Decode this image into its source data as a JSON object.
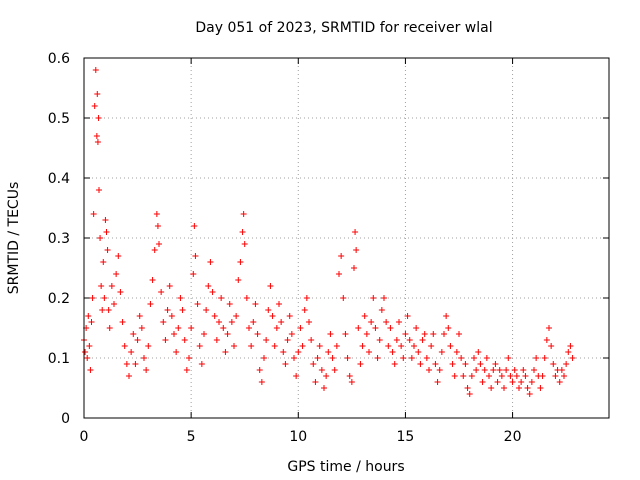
{
  "chart_data": {
    "type": "scatter",
    "title": "Day 051 of 2023, SRMTID for receiver wlal",
    "xlabel": "GPS time / hours",
    "ylabel": "SRMTID / TECUs",
    "xlim": [
      0,
      24.5
    ],
    "ylim": [
      0,
      0.6
    ],
    "xticks": [
      0,
      5,
      10,
      15,
      20
    ],
    "yticks": [
      0,
      0.1,
      0.2,
      0.3,
      0.4,
      0.5,
      0.6
    ],
    "xtick_labels": [
      "0",
      "5",
      "10",
      "15",
      "20"
    ],
    "ytick_labels": [
      "0",
      "0.1",
      "0.2",
      "0.3",
      "0.4",
      "0.5",
      "0.6"
    ],
    "grid": true,
    "marker": "+",
    "color": "#ff0000",
    "series": [
      {
        "name": "SRMTID",
        "points": [
          [
            0.0,
            0.13
          ],
          [
            0.05,
            0.11
          ],
          [
            0.1,
            0.15
          ],
          [
            0.15,
            0.1
          ],
          [
            0.2,
            0.17
          ],
          [
            0.25,
            0.12
          ],
          [
            0.3,
            0.08
          ],
          [
            0.35,
            0.16
          ],
          [
            0.4,
            0.2
          ],
          [
            0.45,
            0.34
          ],
          [
            0.5,
            0.52
          ],
          [
            0.55,
            0.58
          ],
          [
            0.6,
            0.47
          ],
          [
            0.62,
            0.54
          ],
          [
            0.65,
            0.46
          ],
          [
            0.68,
            0.5
          ],
          [
            0.7,
            0.38
          ],
          [
            0.75,
            0.3
          ],
          [
            0.8,
            0.22
          ],
          [
            0.85,
            0.18
          ],
          [
            0.9,
            0.26
          ],
          [
            0.95,
            0.2
          ],
          [
            1.0,
            0.33
          ],
          [
            1.05,
            0.31
          ],
          [
            1.1,
            0.28
          ],
          [
            1.15,
            0.18
          ],
          [
            1.2,
            0.15
          ],
          [
            1.3,
            0.22
          ],
          [
            1.4,
            0.19
          ],
          [
            1.5,
            0.24
          ],
          [
            1.6,
            0.27
          ],
          [
            1.7,
            0.21
          ],
          [
            1.8,
            0.16
          ],
          [
            1.9,
            0.12
          ],
          [
            2.0,
            0.09
          ],
          [
            2.1,
            0.07
          ],
          [
            2.2,
            0.11
          ],
          [
            2.3,
            0.14
          ],
          [
            2.4,
            0.09
          ],
          [
            2.5,
            0.13
          ],
          [
            2.6,
            0.17
          ],
          [
            2.7,
            0.15
          ],
          [
            2.8,
            0.1
          ],
          [
            2.9,
            0.08
          ],
          [
            3.0,
            0.12
          ],
          [
            3.1,
            0.19
          ],
          [
            3.2,
            0.23
          ],
          [
            3.3,
            0.28
          ],
          [
            3.4,
            0.34
          ],
          [
            3.45,
            0.32
          ],
          [
            3.5,
            0.29
          ],
          [
            3.6,
            0.21
          ],
          [
            3.7,
            0.16
          ],
          [
            3.8,
            0.13
          ],
          [
            3.9,
            0.18
          ],
          [
            4.0,
            0.22
          ],
          [
            4.1,
            0.17
          ],
          [
            4.2,
            0.14
          ],
          [
            4.3,
            0.11
          ],
          [
            4.4,
            0.15
          ],
          [
            4.5,
            0.2
          ],
          [
            4.6,
            0.18
          ],
          [
            4.7,
            0.13
          ],
          [
            4.8,
            0.08
          ],
          [
            4.9,
            0.1
          ],
          [
            5.0,
            0.15
          ],
          [
            5.1,
            0.24
          ],
          [
            5.15,
            0.32
          ],
          [
            5.2,
            0.27
          ],
          [
            5.3,
            0.19
          ],
          [
            5.4,
            0.12
          ],
          [
            5.5,
            0.09
          ],
          [
            5.6,
            0.14
          ],
          [
            5.7,
            0.18
          ],
          [
            5.8,
            0.22
          ],
          [
            5.9,
            0.26
          ],
          [
            6.0,
            0.21
          ],
          [
            6.1,
            0.17
          ],
          [
            6.2,
            0.13
          ],
          [
            6.3,
            0.16
          ],
          [
            6.4,
            0.2
          ],
          [
            6.5,
            0.15
          ],
          [
            6.6,
            0.11
          ],
          [
            6.7,
            0.14
          ],
          [
            6.8,
            0.19
          ],
          [
            6.9,
            0.16
          ],
          [
            7.0,
            0.12
          ],
          [
            7.1,
            0.17
          ],
          [
            7.2,
            0.23
          ],
          [
            7.3,
            0.26
          ],
          [
            7.4,
            0.31
          ],
          [
            7.45,
            0.34
          ],
          [
            7.5,
            0.29
          ],
          [
            7.6,
            0.2
          ],
          [
            7.7,
            0.15
          ],
          [
            7.8,
            0.12
          ],
          [
            7.9,
            0.16
          ],
          [
            8.0,
            0.19
          ],
          [
            8.1,
            0.14
          ],
          [
            8.2,
            0.08
          ],
          [
            8.3,
            0.06
          ],
          [
            8.4,
            0.1
          ],
          [
            8.5,
            0.13
          ],
          [
            8.6,
            0.18
          ],
          [
            8.7,
            0.22
          ],
          [
            8.8,
            0.17
          ],
          [
            8.9,
            0.12
          ],
          [
            9.0,
            0.15
          ],
          [
            9.1,
            0.19
          ],
          [
            9.2,
            0.16
          ],
          [
            9.3,
            0.11
          ],
          [
            9.4,
            0.09
          ],
          [
            9.5,
            0.13
          ],
          [
            9.6,
            0.17
          ],
          [
            9.7,
            0.14
          ],
          [
            9.8,
            0.1
          ],
          [
            9.9,
            0.07
          ],
          [
            10.0,
            0.11
          ],
          [
            10.1,
            0.15
          ],
          [
            10.2,
            0.12
          ],
          [
            10.3,
            0.18
          ],
          [
            10.4,
            0.2
          ],
          [
            10.5,
            0.16
          ],
          [
            10.6,
            0.13
          ],
          [
            10.7,
            0.09
          ],
          [
            10.8,
            0.06
          ],
          [
            10.9,
            0.1
          ],
          [
            11.0,
            0.12
          ],
          [
            11.1,
            0.08
          ],
          [
            11.2,
            0.05
          ],
          [
            11.3,
            0.07
          ],
          [
            11.4,
            0.11
          ],
          [
            11.5,
            0.14
          ],
          [
            11.6,
            0.1
          ],
          [
            11.7,
            0.08
          ],
          [
            11.8,
            0.12
          ],
          [
            11.9,
            0.24
          ],
          [
            12.0,
            0.27
          ],
          [
            12.1,
            0.2
          ],
          [
            12.2,
            0.14
          ],
          [
            12.3,
            0.1
          ],
          [
            12.4,
            0.07
          ],
          [
            12.5,
            0.06
          ],
          [
            12.6,
            0.25
          ],
          [
            12.65,
            0.31
          ],
          [
            12.7,
            0.28
          ],
          [
            12.8,
            0.15
          ],
          [
            12.9,
            0.09
          ],
          [
            13.0,
            0.12
          ],
          [
            13.1,
            0.17
          ],
          [
            13.2,
            0.14
          ],
          [
            13.3,
            0.11
          ],
          [
            13.4,
            0.16
          ],
          [
            13.5,
            0.2
          ],
          [
            13.6,
            0.15
          ],
          [
            13.7,
            0.1
          ],
          [
            13.8,
            0.13
          ],
          [
            13.9,
            0.18
          ],
          [
            14.0,
            0.2
          ],
          [
            14.1,
            0.16
          ],
          [
            14.2,
            0.12
          ],
          [
            14.3,
            0.15
          ],
          [
            14.4,
            0.11
          ],
          [
            14.5,
            0.09
          ],
          [
            14.6,
            0.13
          ],
          [
            14.7,
            0.16
          ],
          [
            14.8,
            0.12
          ],
          [
            14.9,
            0.1
          ],
          [
            15.0,
            0.14
          ],
          [
            15.1,
            0.17
          ],
          [
            15.2,
            0.13
          ],
          [
            15.3,
            0.1
          ],
          [
            15.4,
            0.12
          ],
          [
            15.5,
            0.15
          ],
          [
            15.6,
            0.11
          ],
          [
            15.7,
            0.09
          ],
          [
            15.8,
            0.13
          ],
          [
            15.9,
            0.14
          ],
          [
            16.0,
            0.1
          ],
          [
            16.1,
            0.08
          ],
          [
            16.2,
            0.12
          ],
          [
            16.3,
            0.14
          ],
          [
            16.4,
            0.09
          ],
          [
            16.5,
            0.06
          ],
          [
            16.6,
            0.08
          ],
          [
            16.7,
            0.11
          ],
          [
            16.8,
            0.14
          ],
          [
            16.9,
            0.17
          ],
          [
            17.0,
            0.15
          ],
          [
            17.1,
            0.12
          ],
          [
            17.2,
            0.09
          ],
          [
            17.3,
            0.07
          ],
          [
            17.4,
            0.11
          ],
          [
            17.5,
            0.14
          ],
          [
            17.6,
            0.1
          ],
          [
            17.7,
            0.07
          ],
          [
            17.8,
            0.09
          ],
          [
            17.9,
            0.05
          ],
          [
            18.0,
            0.04
          ],
          [
            18.1,
            0.07
          ],
          [
            18.2,
            0.1
          ],
          [
            18.3,
            0.08
          ],
          [
            18.4,
            0.11
          ],
          [
            18.5,
            0.09
          ],
          [
            18.6,
            0.06
          ],
          [
            18.7,
            0.08
          ],
          [
            18.8,
            0.1
          ],
          [
            18.9,
            0.07
          ],
          [
            19.0,
            0.05
          ],
          [
            19.1,
            0.08
          ],
          [
            19.2,
            0.09
          ],
          [
            19.3,
            0.06
          ],
          [
            19.4,
            0.08
          ],
          [
            19.5,
            0.07
          ],
          [
            19.6,
            0.05
          ],
          [
            19.7,
            0.08
          ],
          [
            19.8,
            0.1
          ],
          [
            19.9,
            0.07
          ],
          [
            20.0,
            0.06
          ],
          [
            20.1,
            0.08
          ],
          [
            20.2,
            0.07
          ],
          [
            20.3,
            0.05
          ],
          [
            20.4,
            0.06
          ],
          [
            20.5,
            0.08
          ],
          [
            20.6,
            0.07
          ],
          [
            20.7,
            0.05
          ],
          [
            20.8,
            0.04
          ],
          [
            20.9,
            0.06
          ],
          [
            21.0,
            0.08
          ],
          [
            21.1,
            0.1
          ],
          [
            21.2,
            0.07
          ],
          [
            21.3,
            0.05
          ],
          [
            21.4,
            0.07
          ],
          [
            21.5,
            0.1
          ],
          [
            21.6,
            0.13
          ],
          [
            21.7,
            0.15
          ],
          [
            21.8,
            0.12
          ],
          [
            21.9,
            0.09
          ],
          [
            22.0,
            0.07
          ],
          [
            22.1,
            0.08
          ],
          [
            22.2,
            0.06
          ],
          [
            22.3,
            0.08
          ],
          [
            22.4,
            0.07
          ],
          [
            22.5,
            0.09
          ],
          [
            22.6,
            0.11
          ],
          [
            22.7,
            0.12
          ],
          [
            22.8,
            0.1
          ]
        ]
      }
    ]
  }
}
